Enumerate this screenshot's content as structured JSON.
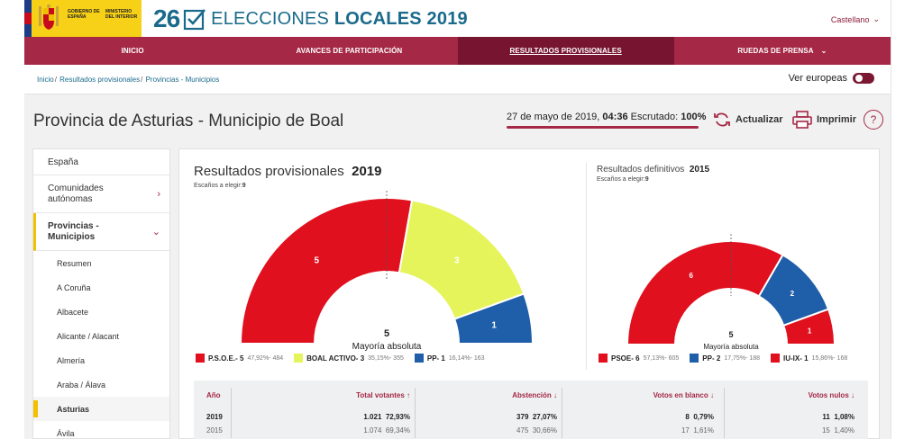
{
  "header": {
    "gov_line1": "GOBIERNO DE ESPAÑA",
    "gov_line2": "MINISTERIO DEL INTERIOR",
    "brand_number": "26",
    "brand_title_light": "ELECCIONES ",
    "brand_title_bold": "LOCALES 2019",
    "language": "Castellano",
    "colors": {
      "brand": "#1a6a8c",
      "nav": "#a52846",
      "nav_active": "#771530",
      "yellow": "#f7d117"
    }
  },
  "nav": {
    "items": [
      {
        "label": "INICIO"
      },
      {
        "label": "AVANCES DE PARTICIPACIÓN"
      },
      {
        "label": "RESULTADOS PROVISIONALES"
      },
      {
        "label": "RUEDAS DE PRENSA"
      }
    ]
  },
  "breadcrumb": {
    "items": [
      "Inicio",
      "Resultados provisionales",
      "Provincias - Municipios"
    ],
    "sep": "/"
  },
  "europeas_label": "Ver europeas",
  "page": {
    "title": "Provincia de Asturias - Municipio de Boal",
    "date": "27 de mayo de 2019, ",
    "time": "04:36",
    "scrutiny_label": " Escrutado: ",
    "scrutiny_value": "100%",
    "refresh_label": "Actualizar",
    "print_label": "Imprimir",
    "help_label": "?"
  },
  "sidebar": {
    "items": [
      {
        "label": "España"
      },
      {
        "label": "Comunidades autónomas"
      },
      {
        "label": "Provincias - Municipios"
      }
    ],
    "subitems": [
      "Resumen",
      "A Coruña",
      "Albacete",
      "Alicante / Alacant",
      "Almería",
      "Araba / Álava",
      "Asturias",
      "Ávila"
    ]
  },
  "results": {
    "title": "Resultados provisionales",
    "year": "2019",
    "seats_label": "Escaños a elegir:",
    "seats_value": "9",
    "def_title": "Resultados definitivos",
    "def_year": "2015",
    "def_seats_label": "Escaños a elegir:",
    "def_seats_value": "9",
    "majority_label": "Mayoría absoluta",
    "majority_value": "5"
  },
  "chart_data": [
    {
      "type": "pie",
      "title": "Resultados provisionales 2019",
      "categories": [
        "P.S.O.E.",
        "BOAL ACTIVO",
        "PP"
      ],
      "values": [
        5,
        3,
        1
      ],
      "colors": [
        "#e0101e",
        "#e6f45c",
        "#1f5ea8"
      ],
      "legend": [
        {
          "label": "P.S.O.E.- 5",
          "detail": "47,92%- 484"
        },
        {
          "label": "BOAL ACTIVO- 3",
          "detail": "35,15%- 355"
        },
        {
          "label": "PP- 1",
          "detail": "16,14%- 163"
        }
      ]
    },
    {
      "type": "pie",
      "title": "Resultados definitivos 2015",
      "categories": [
        "PSOE",
        "PP",
        "IU-IX"
      ],
      "values": [
        6,
        2,
        1
      ],
      "colors": [
        "#e0101e",
        "#1f5ea8",
        "#e0101e"
      ],
      "legend": [
        {
          "label": "PSOE- 6",
          "detail": "57,13%- 605"
        },
        {
          "label": "PP- 2",
          "detail": "17,75%- 188"
        },
        {
          "label": "IU-IX- 1",
          "detail": "15,86%- 168"
        }
      ]
    }
  ],
  "table": {
    "headers": [
      "Año",
      "Total votantes",
      "Abstención",
      "Votos en blanco",
      "Votos nulos"
    ],
    "rows": [
      {
        "year": "2019",
        "votantes": "1.021",
        "votantes_pct": "72,93%",
        "abst": "379",
        "abst_pct": "27,07%",
        "blanco": "8",
        "blanco_pct": "0,79%",
        "nulos": "11",
        "nulos_pct": "1,08%"
      },
      {
        "year": "2015",
        "votantes": "1.074",
        "votantes_pct": "69,34%",
        "abst": "475",
        "abst_pct": "30,66%",
        "blanco": "17",
        "blanco_pct": "1,61%",
        "nulos": "15",
        "nulos_pct": "1,40%"
      }
    ]
  }
}
